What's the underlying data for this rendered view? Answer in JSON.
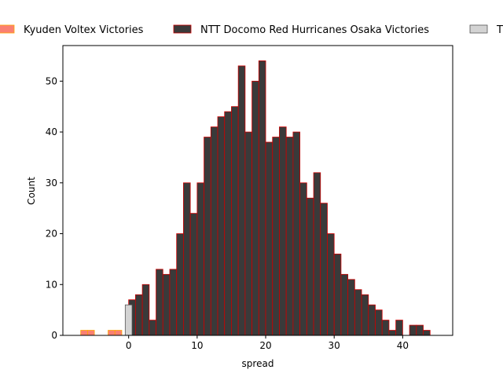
{
  "chart_data": {
    "type": "bar",
    "title": "",
    "xlabel": "spread",
    "ylabel": "Count",
    "xlim": [
      -9.6,
      47.3
    ],
    "ylim": [
      0,
      57
    ],
    "xticks": [
      0,
      10,
      20,
      30,
      40
    ],
    "yticks": [
      0,
      10,
      20,
      30,
      40,
      50
    ],
    "bin_width": 1,
    "grid": false,
    "legend_position": "top, above plot",
    "series": [
      {
        "name": "Kyuden Voltex Victories",
        "color": "#fa8072",
        "edgecolor": "#ffa500",
        "bins": [
          {
            "x": -7,
            "count": 1
          },
          {
            "x": -6,
            "count": 1
          },
          {
            "x": -3,
            "count": 1
          },
          {
            "x": -2,
            "count": 1
          }
        ]
      },
      {
        "name": "NTT Docomo Red Hurricanes Osaka Victories",
        "color": "#3a3a3a",
        "edgecolor": "#cc0000",
        "bins": [
          {
            "x": 0,
            "count": 7
          },
          {
            "x": 1,
            "count": 8
          },
          {
            "x": 2,
            "count": 10
          },
          {
            "x": 3,
            "count": 3
          },
          {
            "x": 4,
            "count": 13
          },
          {
            "x": 5,
            "count": 12
          },
          {
            "x": 6,
            "count": 13
          },
          {
            "x": 7,
            "count": 20
          },
          {
            "x": 8,
            "count": 30
          },
          {
            "x": 9,
            "count": 24
          },
          {
            "x": 10,
            "count": 30
          },
          {
            "x": 11,
            "count": 39
          },
          {
            "x": 12,
            "count": 41
          },
          {
            "x": 13,
            "count": 43
          },
          {
            "x": 14,
            "count": 44
          },
          {
            "x": 15,
            "count": 45
          },
          {
            "x": 16,
            "count": 53
          },
          {
            "x": 17,
            "count": 40
          },
          {
            "x": 18,
            "count": 50
          },
          {
            "x": 19,
            "count": 54
          },
          {
            "x": 20,
            "count": 38
          },
          {
            "x": 21,
            "count": 39
          },
          {
            "x": 22,
            "count": 41
          },
          {
            "x": 23,
            "count": 39
          },
          {
            "x": 24,
            "count": 40
          },
          {
            "x": 25,
            "count": 30
          },
          {
            "x": 26,
            "count": 27
          },
          {
            "x": 27,
            "count": 32
          },
          {
            "x": 28,
            "count": 26
          },
          {
            "x": 29,
            "count": 20
          },
          {
            "x": 30,
            "count": 16
          },
          {
            "x": 31,
            "count": 12
          },
          {
            "x": 32,
            "count": 11
          },
          {
            "x": 33,
            "count": 9
          },
          {
            "x": 34,
            "count": 8
          },
          {
            "x": 35,
            "count": 6
          },
          {
            "x": 36,
            "count": 5
          },
          {
            "x": 37,
            "count": 3
          },
          {
            "x": 38,
            "count": 1
          },
          {
            "x": 39,
            "count": 3
          },
          {
            "x": 41,
            "count": 2
          },
          {
            "x": 42,
            "count": 2
          },
          {
            "x": 43,
            "count": 1
          }
        ]
      },
      {
        "name": "T",
        "color": "#d3d3d3",
        "edgecolor": "#555555",
        "bins": [
          {
            "x": -0.5,
            "count": 6
          }
        ]
      }
    ]
  }
}
